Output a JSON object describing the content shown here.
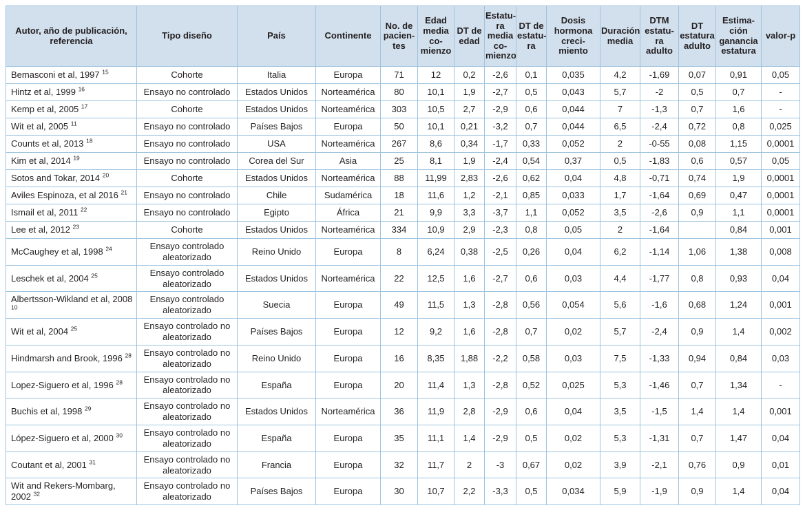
{
  "colors": {
    "header_bg": "#d2e0ee",
    "border": "#9dc3de",
    "text": "#231f20"
  },
  "table": {
    "columns": [
      "Autor, año de publicación,\nreferencia",
      "Tipo diseño",
      "País",
      "Continente",
      "No. de\npacien-\ntes",
      "Edad\nmedia\nco-\nmienzo",
      "DT de\nedad",
      "Estatu-\nra\nmedia\nco-\nmienzo",
      "DT de\nestatu-\nra",
      "Dosis\nhormona\ncreci-\nmiento",
      "Duración\nmedia",
      "DTM\nestatu-\nra\nadulto",
      "DT\nestatura\nadulto",
      "Estima-\nción\nganancia\nestatura",
      "valor-p"
    ],
    "rows": [
      {
        "author": "Bemasconi et al, 1997",
        "ref": "15",
        "design": "Cohorte",
        "country": "Italia",
        "continent": "Europa",
        "values": [
          "71",
          "12",
          "0,2",
          "-2,6",
          "0,1",
          "0,035",
          "4,2",
          "-1,69",
          "0,07",
          "0,91",
          "0,05"
        ]
      },
      {
        "author": "Hintz et al, 1999",
        "ref": "16",
        "design": "Ensayo no controlado",
        "country": "Estados Unidos",
        "continent": "Norteamérica",
        "values": [
          "80",
          "10,1",
          "1,9",
          "-2,7",
          "0,5",
          "0,043",
          "5,7",
          "-2",
          "0,5",
          "0,7",
          "-"
        ]
      },
      {
        "author": "Kemp et al, 2005",
        "ref": "17",
        "design": "Cohorte",
        "country": "Estados Unidos",
        "continent": "Norteamérica",
        "values": [
          "303",
          "10,5",
          "2,7",
          "-2,9",
          "0,6",
          "0,044",
          "7",
          "-1,3",
          "0,7",
          "1,6",
          "-"
        ]
      },
      {
        "author": "Wit et al, 2005",
        "ref": "11",
        "design": "Ensayo no controlado",
        "country": "Países Bajos",
        "continent": "Europa",
        "values": [
          "50",
          "10,1",
          "0,21",
          "-3,2",
          "0,7",
          "0,044",
          "6,5",
          "-2,4",
          "0,72",
          "0,8",
          "0,025"
        ]
      },
      {
        "author": "Counts et al, 2013",
        "ref": "18",
        "design": "Ensayo no controlado",
        "country": "USA",
        "continent": "Norteamérica",
        "values": [
          "267",
          "8,6",
          "0,34",
          "-1,7",
          "0,33",
          "0,052",
          "2",
          "-0-55",
          "0,08",
          "1,15",
          "0,0001"
        ]
      },
      {
        "author": "Kim et al, 2014",
        "ref": "19",
        "design": "Ensayo no controlado",
        "country": "Corea del Sur",
        "continent": "Asia",
        "values": [
          "25",
          "8,1",
          "1,9",
          "-2,4",
          "0,54",
          "0,37",
          "0,5",
          "-1,83",
          "0,6",
          "0,57",
          "0,05"
        ]
      },
      {
        "author": "Sotos and Tokar, 2014",
        "ref": "20",
        "design": "Cohorte",
        "country": "Estados Unidos",
        "continent": "Norteamérica",
        "values": [
          "88",
          "11,99",
          "2,83",
          "-2,6",
          "0,62",
          "0,04",
          "4,8",
          "-0,71",
          "0,74",
          "1,9",
          "0,0001"
        ]
      },
      {
        "author": "Aviles Espinoza, et al 2016",
        "ref": "21",
        "design": "Ensayo no controlado",
        "country": "Chile",
        "continent": "Sudamérica",
        "values": [
          "18",
          "11,6",
          "1,2",
          "-2,1",
          "0,85",
          "0,033",
          "1,7",
          "-1,64",
          "0,69",
          "0,47",
          "0,0001"
        ]
      },
      {
        "author": "Ismail et al, 2011",
        "ref": "22",
        "design": "Ensayo no controlado",
        "country": "Egipto",
        "continent": "África",
        "values": [
          "21",
          "9,9",
          "3,3",
          "-3,7",
          "1,1",
          "0,052",
          "3,5",
          "-2,6",
          "0,9",
          "1,1",
          "0,0001"
        ]
      },
      {
        "author": "Lee et al, 2012",
        "ref": "23",
        "design": "Cohorte",
        "country": "Estados Unidos",
        "continent": "Norteamérica",
        "values": [
          "334",
          "10,9",
          "2,9",
          "-2,3",
          "0,8",
          "0,05",
          "2",
          "-1,64",
          "",
          "0,84",
          "0,001"
        ]
      },
      {
        "author": "McCaughey et al, 1998",
        "ref": "24",
        "design": "Ensayo controlado aleatorizado",
        "country": "Reino Unido",
        "continent": "Europa",
        "values": [
          "8",
          "6,24",
          "0,38",
          "-2,5",
          "0,26",
          "0,04",
          "6,2",
          "-1,14",
          "1,06",
          "1,38",
          "0,008"
        ]
      },
      {
        "author": "Leschek et al, 2004",
        "ref": "25",
        "design": "Ensayo controlado aleatorizado",
        "country": "Estados Unidos",
        "continent": "Norteamérica",
        "values": [
          "22",
          "12,5",
          "1,6",
          "-2,7",
          "0,6",
          "0,03",
          "4,4",
          "-1,77",
          "0,8",
          "0,93",
          "0,04"
        ]
      },
      {
        "author": "Albertsson-Wikland et al, 2008",
        "ref": "10",
        "design": "Ensayo controlado aleatorizado",
        "country": "Suecia",
        "continent": "Europa",
        "values": [
          "49",
          "11,5",
          "1,3",
          "-2,8",
          "0,56",
          "0,054",
          "5,6",
          "-1,6",
          "0,68",
          "1,24",
          "0,001"
        ]
      },
      {
        "author": "Wit et al, 2004",
        "ref": "25",
        "design": "Ensayo controlado no aleatorizado",
        "country": "Países Bajos",
        "continent": "Europa",
        "values": [
          "12",
          "9,2",
          "1,6",
          "-2,8",
          "0,7",
          "0,02",
          "5,7",
          "-2,4",
          "0,9",
          "1,4",
          "0,002"
        ]
      },
      {
        "author": "Hindmarsh and Brook, 1996",
        "ref": "28",
        "design": "Ensayo controlado no aleatorizado",
        "country": "Reino Unido",
        "continent": "Europa",
        "values": [
          "16",
          "8,35",
          "1,88",
          "-2,2",
          "0,58",
          "0,03",
          "7,5",
          "-1,33",
          "0,94",
          "0,84",
          "0,03"
        ]
      },
      {
        "author": "Lopez-Siguero et al, 1996",
        "ref": "28",
        "design": "Ensayo controlado no aleatorizado",
        "country": "España",
        "continent": "Europa",
        "values": [
          "20",
          "11,4",
          "1,3",
          "-2,8",
          "0,52",
          "0,025",
          "5,3",
          "-1,46",
          "0,7",
          "1,34",
          "-"
        ]
      },
      {
        "author": "Buchis et al, 1998",
        "ref": "29",
        "design": "Ensayo controlado no aleatorizado",
        "country": "Estados Unidos",
        "continent": "Norteamérica",
        "values": [
          "36",
          "11,9",
          "2,8",
          "-2,9",
          "0,6",
          "0,04",
          "3,5",
          "-1,5",
          "1,4",
          "1,4",
          "0,001"
        ]
      },
      {
        "author": "López-Siguero et al, 2000",
        "ref": "30",
        "design": "Ensayo controlado no aleatorizado",
        "country": "España",
        "continent": "Europa",
        "values": [
          "35",
          "11,1",
          "1,4",
          "-2,9",
          "0,5",
          "0,02",
          "5,3",
          "-1,31",
          "0,7",
          "1,47",
          "0,04"
        ]
      },
      {
        "author": "Coutant et al, 2001",
        "ref": "31",
        "design": "Ensayo controlado no aleatorizado",
        "country": "Francia",
        "continent": "Europa",
        "values": [
          "32",
          "11,7",
          "2",
          "-3",
          "0,67",
          "0,02",
          "3,9",
          "-2,1",
          "0,76",
          "0,9",
          "0,01"
        ]
      },
      {
        "author": "Wit and Rekers-Mombarg, 2002",
        "ref": "32",
        "design": "Ensayo controlado no aleatorizado",
        "country": "Países Bajos",
        "continent": "Europa",
        "values": [
          "30",
          "10,7",
          "2,2",
          "-3,3",
          "0,5",
          "0,034",
          "5,9",
          "-1,9",
          "0,9",
          "1,4",
          "0,04"
        ]
      }
    ]
  }
}
